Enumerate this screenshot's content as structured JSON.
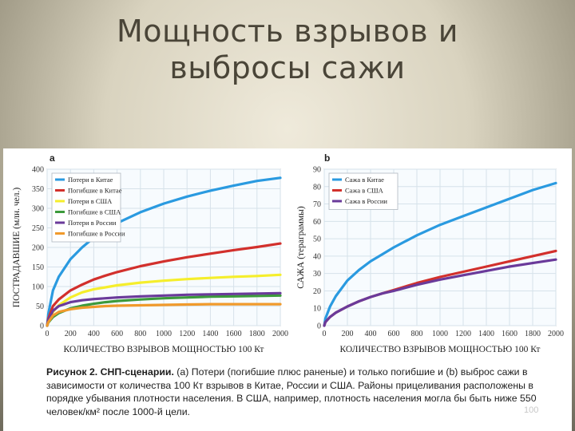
{
  "slide": {
    "title_line1": "Мощность взрывов и",
    "title_line2": "выбросы сажи",
    "page_number": "100"
  },
  "caption": {
    "label": "Рисунок 2. СНП-сценарии.",
    "text": " (а) Потери (погибшие плюс раненые) и только погибшие и (b) выброс сажи в зависимости от количества 100 Кт взрывов в Китае, России и США. Районы прицеливания расположены в порядке убывания плотности населения. В США, например, плотность населения могла бы быть ниже 550 человек/км² после 1000-й цели."
  },
  "chart_data": [
    {
      "type": "line",
      "panel_label": "a",
      "xlabel": "КОЛИЧЕСТВО ВЗРЫВОВ МОЩНОСТЬЮ 100 Кт",
      "ylabel": "ПОСТРАДАВШИЕ (млн. чел.)",
      "xlim": [
        0,
        2000
      ],
      "ylim": [
        0,
        400
      ],
      "xticks": [
        "0",
        "200",
        "400",
        "600",
        "800",
        "1000",
        "1200",
        "1400",
        "1600",
        "1800",
        "2000"
      ],
      "yticks": [
        "0",
        "50",
        "100",
        "150",
        "200",
        "250",
        "300",
        "350",
        "400"
      ],
      "grid": true,
      "legend_position": "top-left",
      "x": [
        0,
        10,
        50,
        100,
        200,
        300,
        400,
        500,
        600,
        800,
        1000,
        1200,
        1400,
        1600,
        1800,
        2000
      ],
      "series": [
        {
          "name": "Потери в Китае",
          "color": "#2a9ae0",
          "values": [
            0,
            30,
            90,
            125,
            170,
            200,
            225,
            245,
            262,
            290,
            312,
            330,
            345,
            358,
            370,
            378
          ]
        },
        {
          "name": "Погибшие в Китае",
          "color": "#d2302c",
          "values": [
            0,
            18,
            50,
            67,
            90,
            105,
            118,
            128,
            137,
            152,
            164,
            175,
            184,
            193,
            201,
            210
          ]
        },
        {
          "name": "Потери в США",
          "color": "#f5ee2c",
          "values": [
            0,
            12,
            35,
            52,
            72,
            85,
            93,
            98,
            103,
            110,
            115,
            119,
            122,
            125,
            127,
            130
          ]
        },
        {
          "name": "Погибшие в США",
          "color": "#3c9a3c",
          "values": [
            0,
            8,
            22,
            32,
            44,
            51,
            56,
            60,
            63,
            67,
            70,
            72,
            74,
            75,
            76,
            77
          ]
        },
        {
          "name": "Потери в России",
          "color": "#6a3a9a",
          "values": [
            0,
            14,
            38,
            50,
            60,
            65,
            68,
            70,
            72,
            75,
            77,
            79,
            80,
            81,
            82,
            83
          ]
        },
        {
          "name": "Погибшие в России",
          "color": "#f09a2c",
          "values": [
            0,
            9,
            26,
            35,
            42,
            46,
            48,
            50,
            51,
            52,
            53,
            54,
            55,
            55,
            55,
            55
          ]
        }
      ]
    },
    {
      "type": "line",
      "panel_label": "b",
      "xlabel": "КОЛИЧЕСТВО ВЗРЫВОВ МОЩНОСТЬЮ 100 Кт",
      "ylabel": "САЖА (терaграммы)",
      "xlim": [
        0,
        2000
      ],
      "ylim": [
        0,
        90
      ],
      "xticks": [
        "0",
        "200",
        "400",
        "600",
        "800",
        "1000",
        "1200",
        "1400",
        "1600",
        "1800",
        "2000"
      ],
      "yticks": [
        "0",
        "10",
        "20",
        "30",
        "40",
        "50",
        "60",
        "70",
        "80",
        "90"
      ],
      "grid": true,
      "legend_position": "top-left",
      "x": [
        0,
        10,
        50,
        100,
        200,
        300,
        400,
        500,
        600,
        800,
        1000,
        1200,
        1400,
        1600,
        1800,
        2000
      ],
      "series": [
        {
          "name": "Сажа в Китае",
          "color": "#2a9ae0",
          "values": [
            0,
            4,
            11,
            17,
            26,
            32,
            37,
            41,
            45,
            52,
            58,
            63,
            68,
            73,
            78,
            82
          ]
        },
        {
          "name": "Сажа в США",
          "color": "#d2302c",
          "values": [
            0,
            2,
            5,
            7.5,
            11,
            14,
            16.5,
            18.5,
            20.5,
            24.5,
            28,
            31,
            34,
            37,
            40,
            43
          ]
        },
        {
          "name": "Сажа в России",
          "color": "#6a3a9a",
          "values": [
            0,
            2,
            5,
            7.5,
            11,
            14,
            16.5,
            18.5,
            20,
            23.5,
            26.5,
            29,
            31.5,
            34,
            36,
            38
          ]
        }
      ]
    }
  ]
}
